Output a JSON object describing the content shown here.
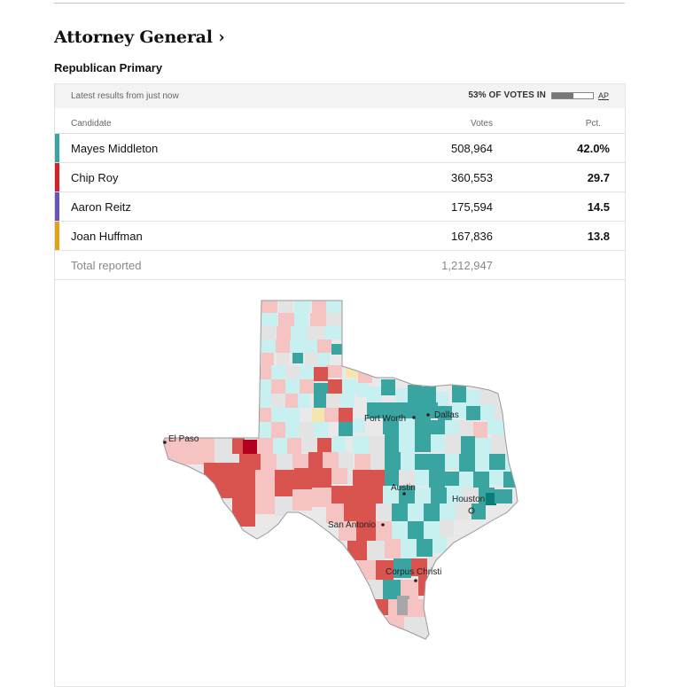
{
  "race": {
    "title": "Attorney General ›",
    "subtitle": "Republican Primary"
  },
  "status": {
    "latest": "Latest results from just now",
    "reporting_label": "53% OF VOTES IN",
    "reporting_fraction": 0.53,
    "source": "AP"
  },
  "table": {
    "headers": {
      "candidate": "Candidate",
      "votes": "Votes",
      "pct": "Pct."
    },
    "rows": [
      {
        "name": "Mayes Middleton",
        "votes": "508,964",
        "pct": "42.0%",
        "color": "#3aa5a0"
      },
      {
        "name": "Chip Roy",
        "votes": "360,553",
        "pct": "29.7",
        "color": "#d0232a"
      },
      {
        "name": "Aaron Reitz",
        "votes": "175,594",
        "pct": "14.5",
        "color": "#6b54b8"
      },
      {
        "name": "Joan Huffman",
        "votes": "167,836",
        "pct": "13.8",
        "color": "#e0a31a"
      }
    ],
    "total": {
      "label": "Total reported",
      "votes": "1,212,947"
    }
  },
  "map": {
    "cities": [
      "Fort Worth",
      "Dallas",
      "El Paso",
      "Austin",
      "Houston",
      "San Antonio",
      "Corpus Christi"
    ]
  }
}
